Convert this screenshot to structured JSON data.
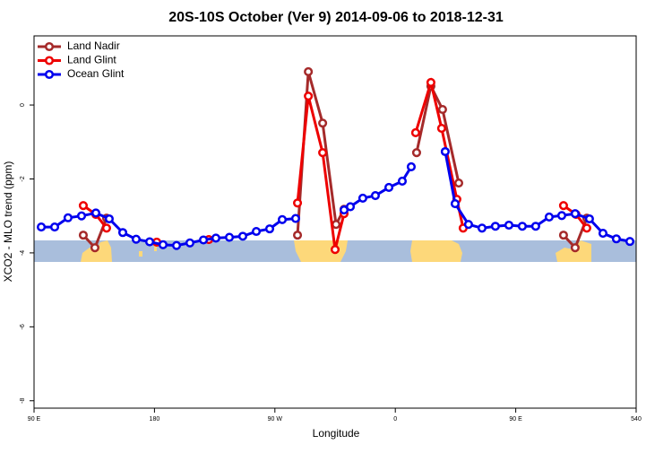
{
  "chart_data": {
    "type": "line",
    "title": "20S-10S October (Ver 9)   2014-09-06 to 2018-12-31",
    "x_label": "Longitude",
    "y_label": "XCO2 - MLO trend (ppm)",
    "xlim": [
      90,
      540
    ],
    "xticks": [
      {
        "value": 90,
        "label": "90 E"
      },
      180,
      {
        "value": 270,
        "label": "90 W"
      },
      {
        "value": 360,
        "label": "0"
      },
      {
        "value": 450,
        "label": "90 E"
      },
      540
    ],
    "ylim": [
      -8.2,
      1.87
    ],
    "yticks": [
      0,
      -2,
      -4,
      -6,
      -8
    ],
    "legend": "top-left",
    "series": [
      {
        "name": "Land Nadir",
        "color": "#a52a2a",
        "x": [
          126.8,
          135.5,
          144.2,
          null,
          286.9,
          295,
          305.7,
          315.7,
          321.7,
          null,
          375.9,
          386.6,
          395.3,
          407.4,
          null,
          485.7,
          494.4,
          503.1
        ],
        "values": [
          -3.52,
          -3.86,
          -3.06,
          null,
          -3.52,
          0.9,
          -0.49,
          -3.23,
          -2.82,
          null,
          -1.29,
          0.51,
          -0.12,
          -2.11,
          null,
          -3.52,
          -3.86,
          -3.06
        ]
      },
      {
        "name": "Land Glint",
        "color": "#ee0000",
        "x": [
          126.8,
          136.2,
          144.2,
          null,
          181.7,
          null,
          220.6,
          null,
          286.9,
          295,
          305.7,
          315,
          321.7,
          null,
          375.2,
          386.6,
          394.6,
          406,
          410.7,
          null,
          485.7,
          495.1,
          503.1
        ],
        "values": [
          -2.72,
          -2.96,
          -3.33,
          null,
          -3.71,
          null,
          -3.64,
          null,
          -2.65,
          0.24,
          -1.29,
          -3.91,
          -2.94,
          null,
          -0.75,
          0.61,
          -0.63,
          -2.55,
          -3.33,
          null,
          -2.72,
          -2.96,
          -3.33
        ]
      },
      {
        "name": "Ocean Glint",
        "color": "#0000ee",
        "x": [
          95.4,
          105.4,
          115.4,
          125.5,
          136.2,
          146.2,
          156.3,
          166.3,
          176.4,
          186.4,
          196.5,
          206.5,
          216.6,
          225.9,
          236,
          246,
          256.1,
          266.1,
          275.5,
          285.5,
          null,
          321.7,
          326.4,
          335.7,
          345.1,
          355.2,
          365.2,
          371.9,
          null,
          397.3,
          404.7,
          414.7,
          424.8,
          434.8,
          444.9,
          454.9,
          464.9,
          475,
          484.4,
          494.4,
          505.1,
          515.2,
          525.2,
          535.3
        ],
        "values": [
          -3.3,
          -3.3,
          -3.05,
          -3.0,
          -2.92,
          -3.08,
          -3.45,
          -3.63,
          -3.7,
          -3.78,
          -3.8,
          -3.73,
          -3.65,
          -3.6,
          -3.58,
          -3.55,
          -3.42,
          -3.35,
          -3.1,
          -3.07,
          null,
          -2.84,
          -2.75,
          -2.52,
          -2.45,
          -2.23,
          -2.06,
          -1.67,
          null,
          -1.26,
          -2.67,
          -3.23,
          -3.33,
          -3.28,
          -3.25,
          -3.28,
          -3.28,
          -3.03,
          -2.99,
          -2.94,
          -3.08,
          -3.47,
          -3.62,
          -3.69
        ]
      }
    ]
  }
}
